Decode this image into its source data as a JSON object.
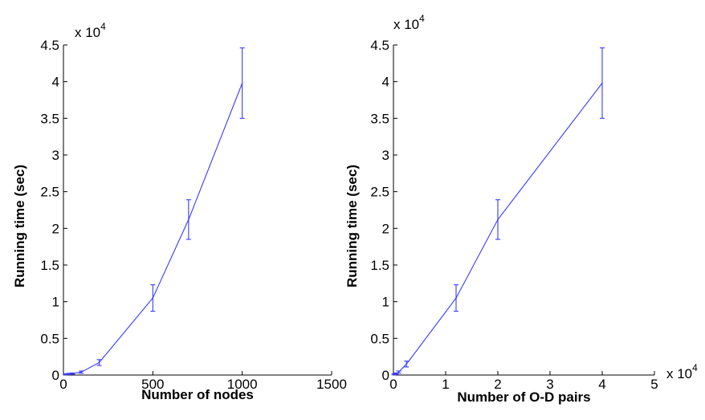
{
  "chart_data": [
    {
      "type": "line",
      "xlabel": "Number of nodes",
      "ylabel": "Running time (sec)",
      "x_ticks": [
        "0",
        "500",
        "1000",
        "1500"
      ],
      "y_ticks": [
        "0",
        "0.5",
        "1",
        "1.5",
        "2",
        "2.5",
        "3",
        "3.5",
        "4",
        "4.5"
      ],
      "y_exponent": "x 10",
      "y_exponent_power": "4",
      "xlim": [
        0,
        1500
      ],
      "ylim": [
        0,
        45000
      ],
      "line_color": "#3a3aff",
      "series": [
        {
          "points": [
            {
              "x": 10,
              "y": 100,
              "err": 80
            },
            {
              "x": 30,
              "y": 150,
              "err": 80
            },
            {
              "x": 50,
              "y": 200,
              "err": 80
            },
            {
              "x": 100,
              "y": 400,
              "err": 150
            },
            {
              "x": 200,
              "y": 1700,
              "err": 400
            },
            {
              "x": 500,
              "y": 10500,
              "err": 1800
            },
            {
              "x": 700,
              "y": 21200,
              "err": 2700
            },
            {
              "x": 1000,
              "y": 39800,
              "err": 4800
            }
          ]
        }
      ]
    },
    {
      "type": "line",
      "xlabel": "Number of O-D pairs",
      "ylabel": "Running time (sec)",
      "x_ticks": [
        "0",
        "1",
        "2",
        "3",
        "4",
        "5"
      ],
      "y_ticks": [
        "0",
        "0.5",
        "1",
        "1.5",
        "2",
        "2.5",
        "3",
        "3.5",
        "4",
        "4.5"
      ],
      "y_exponent": "x 10",
      "y_exponent_power": "4",
      "x_exponent": "x 10",
      "x_exponent_power": "4",
      "xlim": [
        0,
        50000
      ],
      "ylim": [
        0,
        45000
      ],
      "line_color": "#3a3aff",
      "series": [
        {
          "points": [
            {
              "x": 100,
              "y": 100,
              "err": 80
            },
            {
              "x": 500,
              "y": 200,
              "err": 80
            },
            {
              "x": 1000,
              "y": 400,
              "err": 150
            },
            {
              "x": 2500,
              "y": 1500,
              "err": 400
            },
            {
              "x": 12000,
              "y": 10500,
              "err": 1800
            },
            {
              "x": 20000,
              "y": 21200,
              "err": 2700
            },
            {
              "x": 40000,
              "y": 39800,
              "err": 4800
            }
          ]
        }
      ]
    }
  ]
}
